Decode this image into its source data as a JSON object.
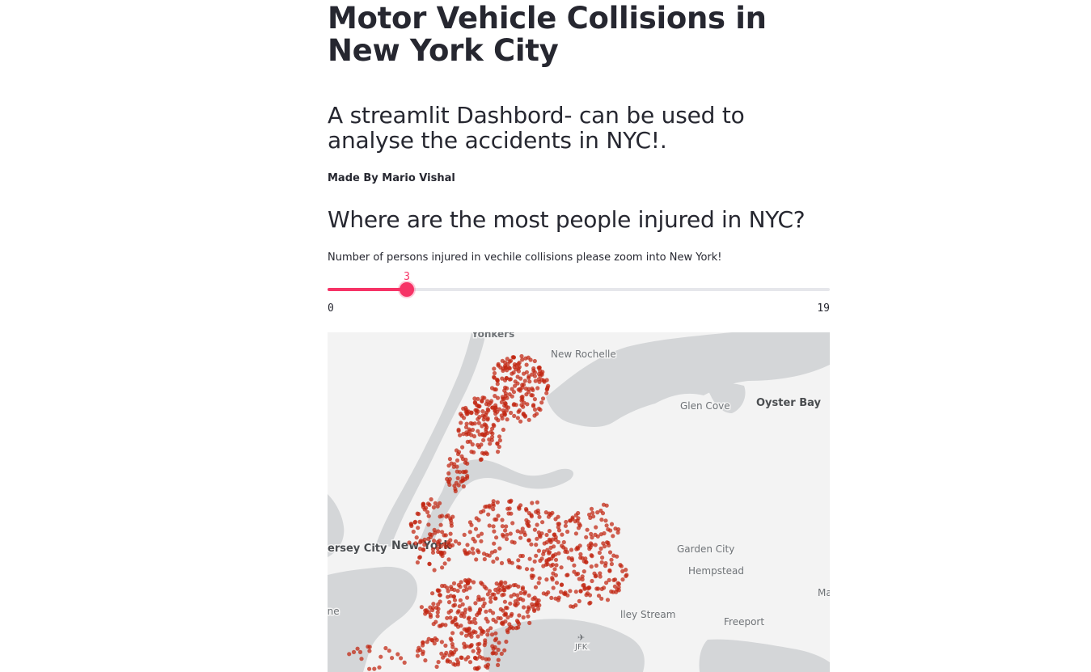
{
  "header": {
    "title": "Motor Vehicle Collisions in New York City",
    "subtitle": "A streamlit Dashbord- can be used to analyse the accidents in NYC!.",
    "byline": "Made By Mario Vishal"
  },
  "section": {
    "heading": "Where are the most people injured in NYC?"
  },
  "slider": {
    "label": "Number of persons injured in vechile collisions please zoom into New York!",
    "value": 3,
    "min": 0,
    "max": 19,
    "accent_color": "#f63366"
  },
  "map": {
    "point_color": "#c0240f",
    "labels": [
      {
        "key": "yonkers",
        "text": "Yonkers"
      },
      {
        "key": "new_rochelle",
        "text": "New Rochelle"
      },
      {
        "key": "glen_cove",
        "text": "Glen Cove"
      },
      {
        "key": "oyster_bay",
        "text": "Oyster Bay"
      },
      {
        "key": "jersey_city",
        "text": "ersey City"
      },
      {
        "key": "new_york",
        "text": "New York"
      },
      {
        "key": "garden_city",
        "text": "Garden City"
      },
      {
        "key": "hempstead",
        "text": "Hempstead"
      },
      {
        "key": "valley_stream",
        "text": "lley Stream"
      },
      {
        "key": "freeport",
        "text": "Freeport"
      },
      {
        "key": "jfk",
        "text": "JFK"
      },
      {
        "key": "ma",
        "text": "Ma"
      },
      {
        "key": "ne",
        "text": "nne"
      }
    ]
  }
}
